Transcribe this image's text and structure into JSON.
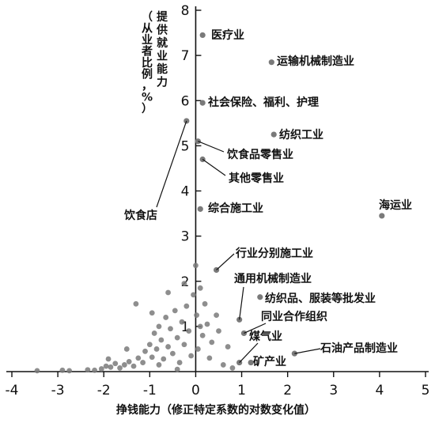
{
  "chart_data": {
    "type": "scatter",
    "xlabel": "挣钱能力（修正特定系数的对数变化值）",
    "ylabel_chars": [
      "提",
      "供",
      "就",
      "业",
      "能",
      "力",
      "（",
      "从",
      "业",
      "者",
      "比",
      "例",
      "，",
      "%",
      "）"
    ],
    "xlim": [
      -4,
      5
    ],
    "ylim": [
      0,
      8
    ],
    "x_ticks": [
      -4,
      -3,
      -2,
      -1,
      0,
      1,
      2,
      3,
      4,
      5
    ],
    "x_tick_labels": [
      "-4",
      "-3",
      "-2",
      "-1",
      "0",
      "1",
      "2",
      "3",
      "4",
      "5"
    ],
    "y_ticks": [
      1,
      2,
      3,
      4,
      5,
      6,
      7,
      8
    ],
    "y_tick_labels": [
      "1",
      "2",
      "3",
      "4",
      "5",
      "6",
      "7",
      "8"
    ],
    "labeled_points": [
      {
        "x": 0.15,
        "y": 7.45,
        "label": "医疗业"
      },
      {
        "x": 1.65,
        "y": 6.85,
        "label": "运输机械制造业"
      },
      {
        "x": 0.15,
        "y": 5.95,
        "label": "社会保险、福利、护理"
      },
      {
        "x": 1.7,
        "y": 5.25,
        "label": "纺织工业"
      },
      {
        "x": -0.2,
        "y": 5.55,
        "label": "饮食店"
      },
      {
        "x": 0.05,
        "y": 5.1,
        "label": "饮食品零售业"
      },
      {
        "x": 0.15,
        "y": 4.7,
        "label": "其他零售业"
      },
      {
        "x": 0.1,
        "y": 3.6,
        "label": "综合施工业"
      },
      {
        "x": 4.05,
        "y": 3.45,
        "label": "海运业"
      },
      {
        "x": 0.45,
        "y": 2.25,
        "label": "行业分别施工业"
      },
      {
        "x": 0.95,
        "y": 1.15,
        "label": "通用机械制造业"
      },
      {
        "x": 1.4,
        "y": 1.65,
        "label": "纺织品、服装等批发业"
      },
      {
        "x": 1.05,
        "y": 0.85,
        "label": "同业合作组织"
      },
      {
        "x": 0.95,
        "y": 0.2,
        "label": "煤气业"
      },
      {
        "x": 2.15,
        "y": 0.4,
        "label": "石油产品制造业"
      },
      {
        "x": 1.2,
        "y": 0.2,
        "label": "矿产业"
      }
    ],
    "unlabeled_points": [
      {
        "x": -3.45,
        "y": 0.02
      },
      {
        "x": -2.9,
        "y": 0.03
      },
      {
        "x": -2.75,
        "y": 0.02
      },
      {
        "x": -2.35,
        "y": 0.04
      },
      {
        "x": -2.2,
        "y": 0.03
      },
      {
        "x": -2.05,
        "y": 0.06
      },
      {
        "x": -1.95,
        "y": 0.12
      },
      {
        "x": -1.85,
        "y": 0.1
      },
      {
        "x": -1.75,
        "y": 0.18
      },
      {
        "x": -1.65,
        "y": 0.08
      },
      {
        "x": -1.55,
        "y": 0.15
      },
      {
        "x": -1.45,
        "y": 0.22
      },
      {
        "x": -1.35,
        "y": 0.12
      },
      {
        "x": -1.25,
        "y": 0.3
      },
      {
        "x": -1.15,
        "y": 0.2
      },
      {
        "x": -1.1,
        "y": 0.45
      },
      {
        "x": -1.0,
        "y": 0.6
      },
      {
        "x": -0.95,
        "y": 0.32
      },
      {
        "x": -0.9,
        "y": 0.85
      },
      {
        "x": -0.85,
        "y": 0.5
      },
      {
        "x": -0.8,
        "y": 1.0
      },
      {
        "x": -0.75,
        "y": 0.7
      },
      {
        "x": -0.7,
        "y": 0.28
      },
      {
        "x": -0.65,
        "y": 1.2
      },
      {
        "x": -0.6,
        "y": 0.55
      },
      {
        "x": -0.55,
        "y": 0.95
      },
      {
        "x": -0.5,
        "y": 0.4
      },
      {
        "x": -0.45,
        "y": 1.35
      },
      {
        "x": -0.4,
        "y": 0.75
      },
      {
        "x": -0.35,
        "y": 0.2
      },
      {
        "x": -0.3,
        "y": 1.1
      },
      {
        "x": -0.25,
        "y": 0.6
      },
      {
        "x": -0.2,
        "y": 1.45
      },
      {
        "x": -0.15,
        "y": 0.9
      },
      {
        "x": -0.1,
        "y": 0.35
      },
      {
        "x": -0.05,
        "y": 1.7
      },
      {
        "x": 0.0,
        "y": 2.35
      },
      {
        "x": 0.02,
        "y": 1.25
      },
      {
        "x": 0.05,
        "y": 0.5
      },
      {
        "x": 0.1,
        "y": 1.85
      },
      {
        "x": 0.15,
        "y": 0.8
      },
      {
        "x": 0.2,
        "y": 1.5
      },
      {
        "x": 0.25,
        "y": 1.05
      },
      {
        "x": 0.3,
        "y": 0.3
      },
      {
        "x": 0.35,
        "y": 0.65
      },
      {
        "x": 0.45,
        "y": 1.25
      },
      {
        "x": 0.5,
        "y": 0.9
      },
      {
        "x": 0.6,
        "y": 0.15
      },
      {
        "x": 0.7,
        "y": 0.55
      },
      {
        "x": 0.8,
        "y": 0.08
      },
      {
        "x": -1.3,
        "y": 1.5
      },
      {
        "x": -0.95,
        "y": 1.3
      },
      {
        "x": -0.6,
        "y": 1.75
      },
      {
        "x": -1.5,
        "y": 0.5
      },
      {
        "x": -0.25,
        "y": 1.95
      },
      {
        "x": 0.1,
        "y": 1.0
      },
      {
        "x": -0.4,
        "y": 0.05
      },
      {
        "x": -1.9,
        "y": 0.28
      },
      {
        "x": -0.8,
        "y": 0.15
      }
    ]
  },
  "style": {
    "point_color": "#7a7a7a",
    "axis_color": "#111111",
    "text_color": "#111111"
  }
}
